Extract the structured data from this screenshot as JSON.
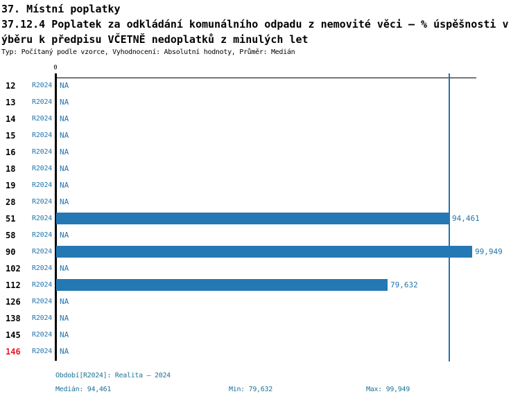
{
  "header": {
    "title": "37. Místní poplatky",
    "subtitle_line1": "37.12.4 Poplatek za odkládání komunálního odpadu z nemovité věci – % úspěšnosti v",
    "subtitle_line2": "ýběru k předpisu VČETNĚ nedoplatků z minulých let",
    "meta": "Typ: Počítaný podle vzorce, Vyhodnocení: Absolutní hodnoty, Průměr: Medián"
  },
  "chart_data": {
    "type": "bar",
    "orientation": "horizontal",
    "axis_zero_label": "0",
    "x_max": 99949,
    "period_label": "R2024",
    "na_label": "NA",
    "median_line_value": 94461,
    "categories": [
      "12",
      "13",
      "14",
      "15",
      "16",
      "18",
      "19",
      "28",
      "51",
      "58",
      "90",
      "102",
      "112",
      "126",
      "138",
      "145",
      "146"
    ],
    "values": [
      null,
      null,
      null,
      null,
      null,
      null,
      null,
      null,
      94461,
      null,
      99949,
      null,
      79632,
      null,
      null,
      null,
      null
    ],
    "value_labels": [
      "NA",
      "NA",
      "NA",
      "NA",
      "NA",
      "NA",
      "NA",
      "NA",
      "94,461",
      "NA",
      "99,949",
      "NA",
      "79,632",
      "NA",
      "NA",
      "NA",
      "NA"
    ],
    "highlighted_category": "146",
    "legend_position": "none",
    "grid": false,
    "colors": {
      "bar": "#2478b4",
      "median_line": "#2472ad",
      "blue_text": "#2474ac",
      "footer_text": "#1d7295",
      "highlight_red": "#e8192c"
    }
  },
  "footer": {
    "period": "Období[R2024]: Realita – 2024",
    "median": "Medián: 94,461",
    "min": "Min: 79,632",
    "max": "Max: 99,949"
  }
}
